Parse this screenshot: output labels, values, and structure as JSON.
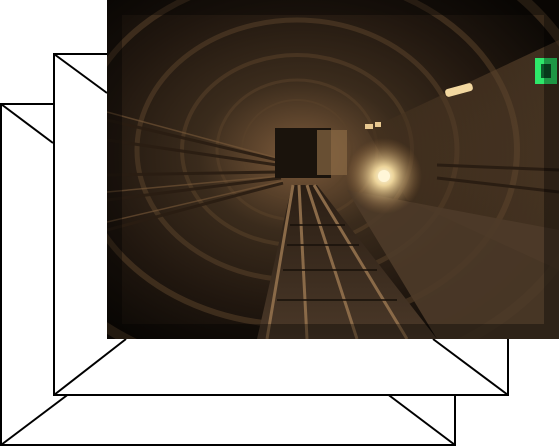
{
  "stack": {
    "frame_count": 3,
    "front_image": "subway-tunnel-photo",
    "colors": {
      "frame_fill": "#ffffff",
      "frame_stroke": "#000000",
      "tunnel_dark": "#15100b",
      "tunnel_warm": "#7a5a3a",
      "headlight": "#fff6d8",
      "exit_sign": "#2ee86a"
    }
  }
}
